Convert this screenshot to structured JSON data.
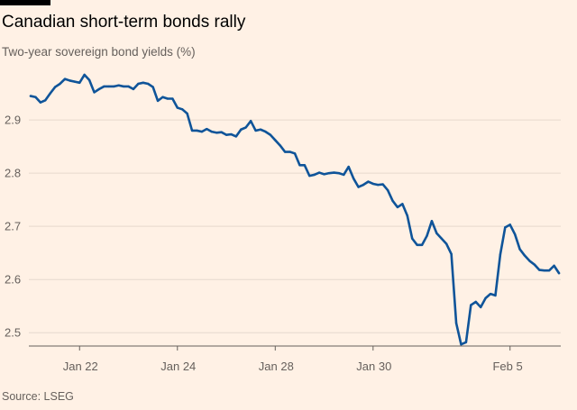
{
  "header": {
    "title": "Canadian short-term bonds rally",
    "subtitle": "Two-year sovereign bond yields (%)"
  },
  "footer": {
    "source": "Source: LSEG"
  },
  "colors": {
    "background": "#fff1e5",
    "line": "#0f5499",
    "grid": "#e6d9ce",
    "axis": "#66605c"
  },
  "chart_data": {
    "type": "line",
    "title": "Canadian short-term bonds rally",
    "subtitle": "Two-year sovereign bond yields (%)",
    "xlabel": "",
    "ylabel": "",
    "ylim": [
      2.475,
      2.99
    ],
    "yticks": [
      2.5,
      2.6,
      2.7,
      2.8,
      2.9
    ],
    "xticks": [
      {
        "label": "Jan 22",
        "index": 10
      },
      {
        "label": "Jan 24",
        "index": 30
      },
      {
        "label": "Jan 28",
        "index": 50
      },
      {
        "label": "Jan 30",
        "index": 70
      },
      {
        "label": "Feb 5",
        "index": 98
      }
    ],
    "grid": "horizontal",
    "series": [
      {
        "values": [
          2.945,
          2.943,
          2.933,
          2.937,
          2.95,
          2.962,
          2.968,
          2.977,
          2.974,
          2.972,
          2.97,
          2.985,
          2.975,
          2.952,
          2.958,
          2.963,
          2.963,
          2.963,
          2.965,
          2.963,
          2.963,
          2.958,
          2.968,
          2.97,
          2.968,
          2.962,
          2.936,
          2.943,
          2.94,
          2.94,
          2.923,
          2.92,
          2.912,
          2.88,
          2.88,
          2.878,
          2.883,
          2.878,
          2.876,
          2.877,
          2.872,
          2.873,
          2.869,
          2.882,
          2.886,
          2.898,
          2.88,
          2.882,
          2.878,
          2.872,
          2.862,
          2.852,
          2.84,
          2.84,
          2.837,
          2.815,
          2.815,
          2.795,
          2.797,
          2.801,
          2.798,
          2.8,
          2.801,
          2.8,
          2.797,
          2.812,
          2.79,
          2.774,
          2.778,
          2.784,
          2.78,
          2.778,
          2.779,
          2.768,
          2.748,
          2.736,
          2.742,
          2.72,
          2.677,
          2.665,
          2.665,
          2.682,
          2.71,
          2.687,
          2.677,
          2.667,
          2.648,
          2.518,
          2.478,
          2.482,
          2.552,
          2.558,
          2.548,
          2.565,
          2.573,
          2.57,
          2.647,
          2.698,
          2.703,
          2.685,
          2.657,
          2.645,
          2.635,
          2.628,
          2.618,
          2.617,
          2.617,
          2.626,
          2.612
        ]
      }
    ]
  }
}
